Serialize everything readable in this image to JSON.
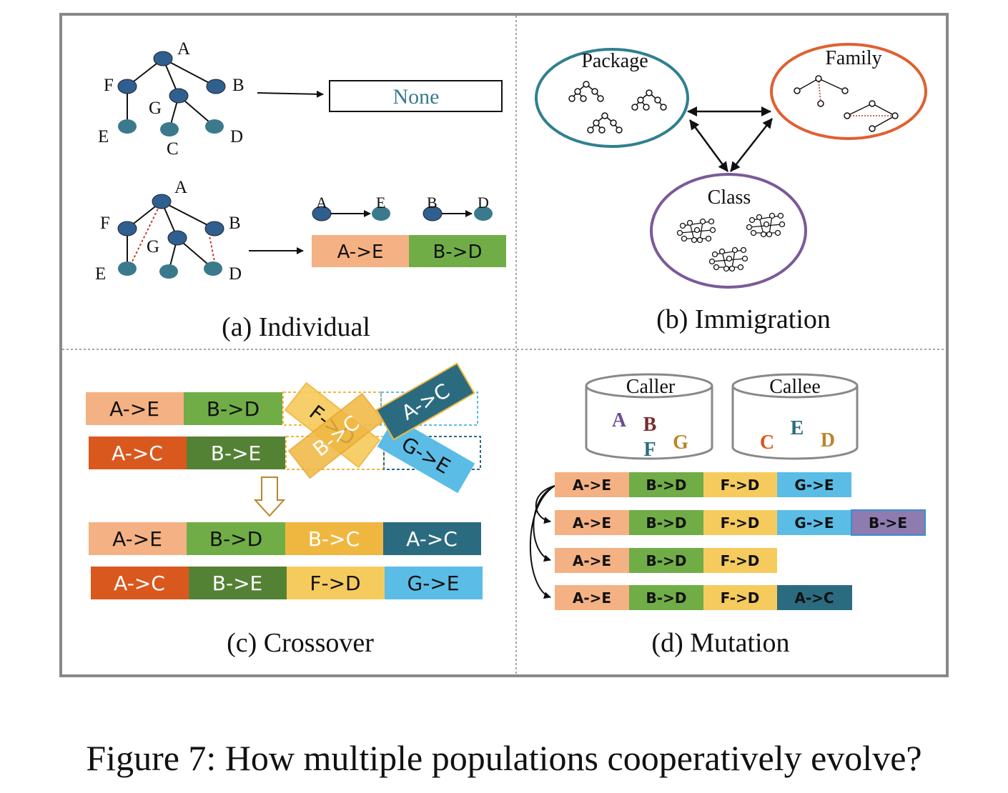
{
  "caption": "Figure 7: How multiple populations cooperatively evolve?",
  "colors": {
    "frame": "#888888",
    "node_dark": "#2f5f8f",
    "node_teal": "#3b7a8c",
    "salmon": "#f4b183",
    "green": "#70ad47",
    "orange_red": "#d9581e",
    "dark_green": "#548235",
    "gold": "#f0b740",
    "teal_dark": "#2b6b80",
    "light_blue": "#5bbde6",
    "pale_yellow": "#f6cb5e",
    "purple": "#8e7bb0",
    "package_ring": "#2f8090",
    "family_ring": "#e06030",
    "class_ring": "#7a5a99"
  },
  "panel_a": {
    "label": "(a) Individual",
    "tree1": {
      "nodes": [
        "A",
        "B",
        "F",
        "G",
        "E",
        "C",
        "D"
      ]
    },
    "none_text": "None",
    "tree2": {
      "nodes": [
        "A",
        "B",
        "F",
        "G",
        "E",
        "D"
      ]
    },
    "pairs": [
      {
        "from": "A",
        "to": "E"
      },
      {
        "from": "B",
        "to": "D"
      }
    ],
    "chromosome": [
      "A->E",
      "B->D"
    ]
  },
  "panel_b": {
    "label": "(b) Immigration",
    "populations": [
      "Package",
      "Family",
      "Class"
    ]
  },
  "panel_c": {
    "label": "(c) Crossover",
    "parent1": [
      "A->E",
      "B->D"
    ],
    "parent2": [
      "A->C",
      "B->E"
    ],
    "swapped": [
      "F->D",
      "B->C",
      "A->C",
      "G->E"
    ],
    "child1": [
      "A->E",
      "B->D",
      "B->C",
      "A->C"
    ],
    "child2": [
      "A->C",
      "B->E",
      "F->D",
      "G->E"
    ]
  },
  "panel_d": {
    "label": "(d) Mutation",
    "caller": {
      "title": "Caller",
      "letters": [
        "A",
        "B",
        "F",
        "G"
      ]
    },
    "callee": {
      "title": "Callee",
      "letters": [
        "C",
        "E",
        "D"
      ]
    },
    "rows": [
      [
        "A->E",
        "B->D",
        "F->D",
        "G->E"
      ],
      [
        "A->E",
        "B->D",
        "F->D",
        "G->E",
        "B->E"
      ],
      [
        "A->E",
        "B->D",
        "F->D"
      ],
      [
        "A->E",
        "B->D",
        "F->D",
        "A->C"
      ]
    ]
  }
}
